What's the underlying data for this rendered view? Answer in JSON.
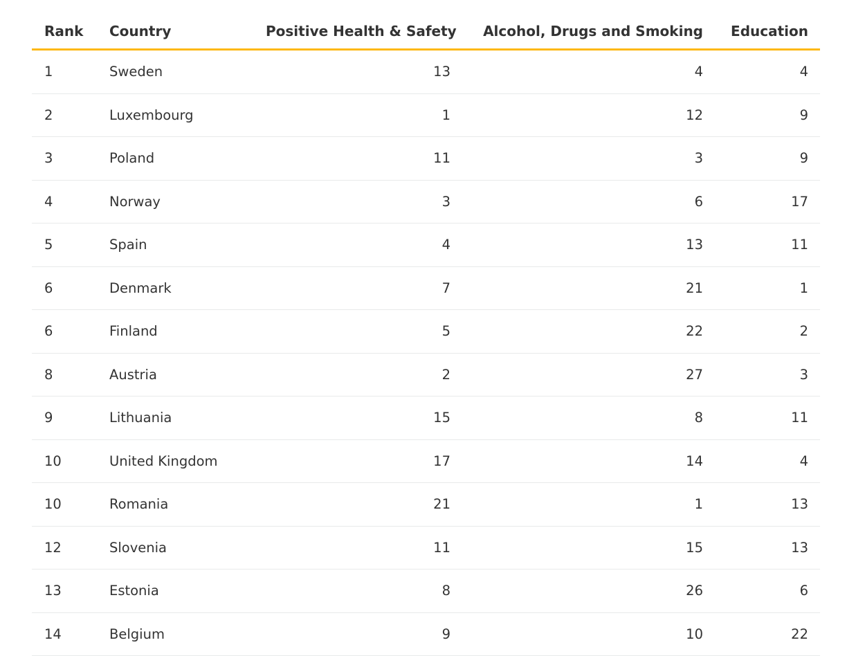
{
  "table": {
    "columns": [
      "Rank",
      "Country",
      "Positive Health & Safety",
      "Alcohol, Drugs and Smoking",
      "Education"
    ],
    "accent_color": "#fdb813",
    "rows": [
      [
        "1",
        "Sweden",
        "13",
        "4",
        "4"
      ],
      [
        "2",
        "Luxembourg",
        "1",
        "12",
        "9"
      ],
      [
        "3",
        "Poland",
        "11",
        "3",
        "9"
      ],
      [
        "4",
        "Norway",
        "3",
        "6",
        "17"
      ],
      [
        "5",
        "Spain",
        "4",
        "13",
        "11"
      ],
      [
        "6",
        "Denmark",
        "7",
        "21",
        "1"
      ],
      [
        "6",
        "Finland",
        "5",
        "22",
        "2"
      ],
      [
        "8",
        "Austria",
        "2",
        "27",
        "3"
      ],
      [
        "9",
        "Lithuania",
        "15",
        "8",
        "11"
      ],
      [
        "10",
        "United Kingdom",
        "17",
        "14",
        "4"
      ],
      [
        "10",
        "Romania",
        "21",
        "1",
        "13"
      ],
      [
        "12",
        "Slovenia",
        "11",
        "15",
        "13"
      ],
      [
        "13",
        "Estonia",
        "8",
        "26",
        "6"
      ],
      [
        "14",
        "Belgium",
        "9",
        "10",
        "22"
      ]
    ]
  }
}
